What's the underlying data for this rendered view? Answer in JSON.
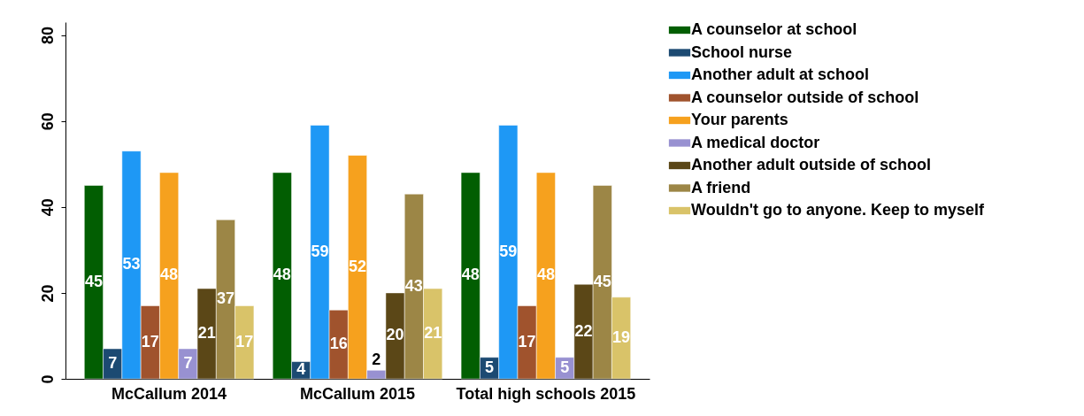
{
  "chart_data": {
    "type": "bar",
    "categories": [
      "McCallum  2014",
      "McCallum 2015",
      "Total high schools 2015"
    ],
    "series": [
      {
        "name": "A counselor at school",
        "color": "#025e02",
        "values": [
          45,
          48,
          48
        ]
      },
      {
        "name": "School nurse",
        "color": "#1c4a72",
        "values": [
          7,
          4,
          5
        ]
      },
      {
        "name": "Another adult at school",
        "color": "#1e98f5",
        "values": [
          53,
          59,
          59
        ]
      },
      {
        "name": "A counselor outside of school",
        "color": "#a0532d",
        "values": [
          17,
          16,
          17
        ]
      },
      {
        "name": "Your parents",
        "color": "#f6a11e",
        "values": [
          48,
          52,
          48
        ]
      },
      {
        "name": "A medical doctor",
        "color": "#9891d1",
        "values": [
          7,
          2,
          5
        ]
      },
      {
        "name": "Another adult outside of school",
        "color": "#5b4717",
        "values": [
          21,
          20,
          22
        ]
      },
      {
        "name": "A friend",
        "color": "#9c8646",
        "values": [
          37,
          43,
          45
        ]
      },
      {
        "name": "Wouldn't go to anyone. Keep to myself",
        "color": "#d9c369",
        "values": [
          17,
          21,
          19
        ]
      }
    ],
    "ylim": [
      0,
      83
    ],
    "yticks": [
      0,
      20,
      40,
      60,
      80
    ],
    "grid": false,
    "legend": "right",
    "data_labels": true
  }
}
